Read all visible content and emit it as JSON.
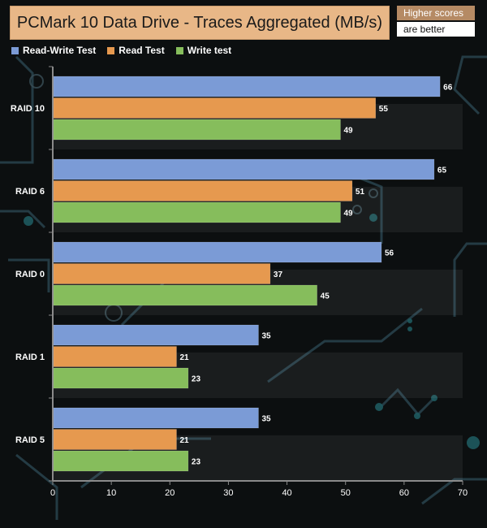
{
  "chart_data": {
    "type": "bar",
    "orientation": "horizontal",
    "title": "PCMark 10 Data Drive - Traces Aggregated (MB/s)",
    "note": [
      "Higher scores",
      "are better"
    ],
    "categories": [
      "RAID 10",
      "RAID 6",
      "RAID 0",
      "RAID 1",
      "RAID 5"
    ],
    "series": [
      {
        "name": "Read-Write Test",
        "color": "#7b9bd6",
        "values": [
          66,
          65,
          56,
          35,
          35
        ]
      },
      {
        "name": "Read Test",
        "color": "#e6994f",
        "values": [
          55,
          51,
          37,
          21,
          21
        ]
      },
      {
        "name": "Write test",
        "color": "#86bd5c",
        "values": [
          49,
          49,
          45,
          23,
          23
        ]
      }
    ],
    "xlim": [
      0,
      70
    ],
    "xticks": [
      0,
      10,
      20,
      30,
      40,
      50,
      60,
      70
    ],
    "xlabel": "",
    "ylabel": "",
    "legend_position": "top-left"
  }
}
